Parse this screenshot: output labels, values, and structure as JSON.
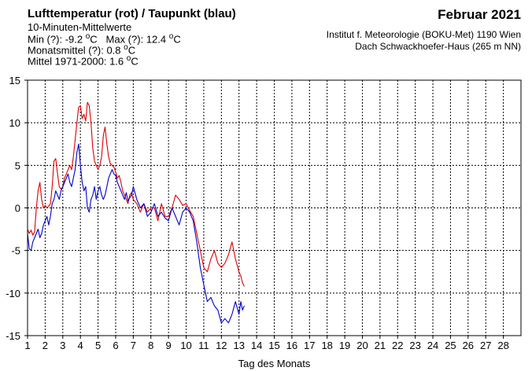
{
  "header": {
    "title": "Lufttemperatur (rot) / Taupunkt (blau)",
    "subtitle": "10-Minuten-Mittelwerte",
    "stats": {
      "min_label": "Min (?):",
      "min_value": "-9.2",
      "max_label": "Max (?):",
      "max_value": "12.4",
      "monthly_label": "Monatsmittel (?):",
      "monthly_value": "0.8",
      "climate_label": "Mittel 1971-2000:",
      "climate_value": "1.6",
      "unit_sup": "o",
      "unit_c": "C"
    },
    "month": "Februar 2021",
    "institute_line1": "Institut f. Meteorologie (BOKU-Met) 1190 Wien",
    "institute_line2": "Dach Schwackhoefer-Haus (265 m NN)"
  },
  "chart_data": {
    "type": "line",
    "xlabel": "Tag des Monats",
    "ylabel": "",
    "xlim": [
      1,
      29
    ],
    "ylim": [
      -15,
      15
    ],
    "x_ticks": [
      1,
      2,
      3,
      4,
      5,
      6,
      7,
      8,
      9,
      10,
      11,
      12,
      13,
      14,
      15,
      16,
      17,
      18,
      19,
      20,
      21,
      22,
      23,
      24,
      25,
      26,
      27,
      28
    ],
    "y_ticks": [
      -15,
      -10,
      -5,
      0,
      5,
      10,
      15
    ],
    "grid": true,
    "colors": {
      "temperature": "#dd0000",
      "dewpoint": "#0000cc"
    },
    "series": [
      {
        "color": "#dd0000",
        "x": [
          1.0,
          1.1,
          1.2,
          1.3,
          1.4,
          1.5,
          1.6,
          1.7,
          1.8,
          1.9,
          2.0,
          2.1,
          2.2,
          2.3,
          2.4,
          2.5,
          2.6,
          2.7,
          2.8,
          2.9,
          3.0,
          3.1,
          3.2,
          3.3,
          3.4,
          3.5,
          3.6,
          3.7,
          3.8,
          3.9,
          4.0,
          4.1,
          4.2,
          4.3,
          4.4,
          4.5,
          4.6,
          4.7,
          4.8,
          4.9,
          5.0,
          5.1,
          5.2,
          5.3,
          5.4,
          5.5,
          5.6,
          5.7,
          5.8,
          5.9,
          6.0,
          6.1,
          6.2,
          6.3,
          6.4,
          6.5,
          6.6,
          6.7,
          6.8,
          6.9,
          7.0,
          7.2,
          7.4,
          7.6,
          7.8,
          8.0,
          8.2,
          8.4,
          8.6,
          8.8,
          9.0,
          9.2,
          9.4,
          9.6,
          9.8,
          10.0,
          10.2,
          10.4,
          10.6,
          10.8,
          11.0,
          11.2,
          11.4,
          11.6,
          11.8,
          12.0,
          12.2,
          12.4,
          12.6,
          12.8,
          13.0,
          13.1,
          13.2,
          13.3
        ],
        "values": [
          -2.5,
          -3.0,
          -2.6,
          -3.2,
          -2.8,
          0.0,
          2.0,
          3.0,
          1.0,
          0.0,
          0.3,
          0.0,
          0.2,
          0.5,
          2.5,
          5.5,
          5.8,
          4.0,
          2.5,
          2.2,
          2.5,
          3.5,
          4.0,
          4.5,
          5.0,
          4.5,
          6.0,
          8.0,
          10.0,
          11.8,
          12.0,
          10.5,
          11.0,
          10.2,
          12.4,
          12.0,
          10.0,
          7.0,
          5.5,
          5.0,
          4.5,
          5.0,
          6.0,
          8.5,
          9.5,
          7.5,
          6.0,
          5.2,
          5.0,
          4.8,
          4.2,
          3.5,
          3.8,
          3.0,
          2.0,
          1.5,
          1.0,
          0.5,
          1.5,
          1.8,
          1.0,
          0.5,
          -0.5,
          0.5,
          -0.5,
          0.0,
          0.0,
          -1.5,
          0.5,
          -1.0,
          -1.0,
          0.0,
          1.5,
          1.0,
          0.3,
          0.5,
          -0.3,
          -1.0,
          -3.0,
          -5.0,
          -7.0,
          -7.5,
          -6.0,
          -5.0,
          -6.5,
          -7.0,
          -6.5,
          -5.5,
          -4.0,
          -6.0,
          -7.5,
          -8.0,
          -8.8,
          -9.2
        ]
      },
      {
        "color": "#0000cc",
        "x": [
          1.0,
          1.1,
          1.2,
          1.3,
          1.4,
          1.5,
          1.6,
          1.7,
          1.8,
          1.9,
          2.0,
          2.1,
          2.2,
          2.3,
          2.4,
          2.5,
          2.6,
          2.7,
          2.8,
          2.9,
          3.0,
          3.1,
          3.2,
          3.3,
          3.4,
          3.5,
          3.6,
          3.7,
          3.8,
          3.9,
          4.0,
          4.1,
          4.2,
          4.3,
          4.4,
          4.5,
          4.6,
          4.7,
          4.8,
          4.9,
          5.0,
          5.1,
          5.2,
          5.3,
          5.4,
          5.5,
          5.6,
          5.7,
          5.8,
          5.9,
          6.0,
          6.1,
          6.2,
          6.3,
          6.4,
          6.5,
          6.6,
          6.7,
          6.8,
          6.9,
          7.0,
          7.2,
          7.4,
          7.6,
          7.8,
          8.0,
          8.2,
          8.4,
          8.6,
          8.8,
          9.0,
          9.2,
          9.4,
          9.6,
          9.8,
          10.0,
          10.2,
          10.4,
          10.6,
          10.8,
          11.0,
          11.2,
          11.4,
          11.6,
          11.8,
          12.0,
          12.2,
          12.4,
          12.6,
          12.8,
          13.0,
          13.1,
          13.2,
          13.3
        ],
        "values": [
          -3.0,
          -4.8,
          -5.0,
          -4.0,
          -3.5,
          -3.0,
          -2.5,
          -3.5,
          -3.0,
          -2.0,
          -1.5,
          -1.0,
          -2.0,
          -1.0,
          0.5,
          1.0,
          2.0,
          1.5,
          1.0,
          2.0,
          2.5,
          3.0,
          3.5,
          4.0,
          3.0,
          2.5,
          3.5,
          4.5,
          6.5,
          7.5,
          5.0,
          3.0,
          2.0,
          2.5,
          0.0,
          -0.5,
          1.0,
          1.5,
          2.5,
          1.0,
          2.0,
          2.5,
          1.5,
          1.0,
          1.5,
          2.5,
          3.5,
          4.0,
          4.5,
          4.0,
          3.8,
          3.0,
          2.5,
          2.0,
          1.5,
          1.0,
          1.8,
          0.8,
          1.2,
          1.5,
          2.5,
          1.0,
          0.0,
          0.5,
          -1.0,
          -0.5,
          0.5,
          -1.0,
          -0.5,
          -1.2,
          -1.5,
          0.0,
          -1.0,
          -2.0,
          -0.5,
          0.0,
          -0.5,
          -1.5,
          -4.0,
          -7.0,
          -9.0,
          -11.0,
          -10.5,
          -11.5,
          -12.0,
          -13.5,
          -13.0,
          -13.5,
          -12.5,
          -11.0,
          -12.5,
          -11.0,
          -12.0,
          -11.5
        ]
      }
    ]
  }
}
